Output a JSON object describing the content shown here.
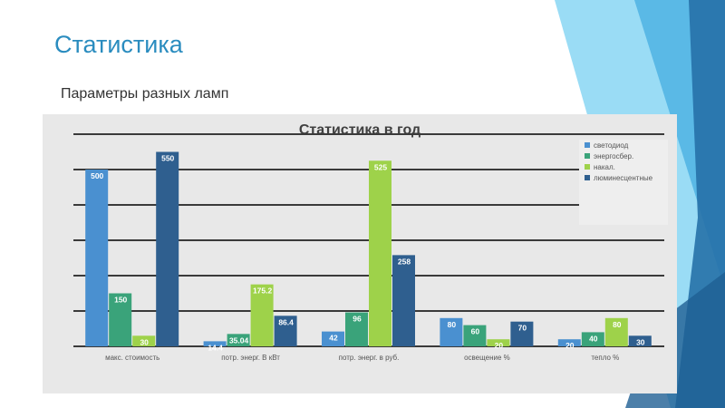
{
  "slide": {
    "title": "Статистика",
    "subtitle": "Параметры разных ламп"
  },
  "colors": {
    "title": "#2a8cbf",
    "series": [
      "#4a90d0",
      "#3aa37a",
      "#9ed24a",
      "#2f5f8f"
    ],
    "deco_light": "#7fd0f2",
    "deco_mid": "#3aa0d6",
    "deco_dark": "#1f5f94"
  },
  "chart_data": {
    "type": "bar",
    "title": "Статистика в год",
    "xlabel": "",
    "ylabel": "",
    "ylim": [
      0,
      600
    ],
    "grid": true,
    "legend_position": "top-right",
    "categories": [
      "макс. стоимость",
      "потр. энерг. В кВт",
      "потр. энерг. в руб.",
      "освещение %",
      "тепло %"
    ],
    "series": [
      {
        "name": "светодиод",
        "values": [
          500,
          14.4,
          42,
          80,
          20
        ],
        "labels": [
          "500",
          "14.4",
          "42",
          "80",
          "20"
        ]
      },
      {
        "name": "энергосбер.",
        "values": [
          150,
          35.04,
          96,
          60,
          40
        ],
        "labels": [
          "150",
          "35.04",
          "96",
          "60",
          "40"
        ]
      },
      {
        "name": "накал.",
        "values": [
          30,
          175.2,
          525,
          20,
          80
        ],
        "labels": [
          "30",
          "175.2",
          "525",
          "20",
          "80"
        ]
      },
      {
        "name": "люминесцентные",
        "values": [
          550,
          86.4,
          258,
          70,
          30
        ],
        "labels": [
          "550",
          "86.4",
          "258",
          "70",
          "30"
        ]
      }
    ]
  }
}
